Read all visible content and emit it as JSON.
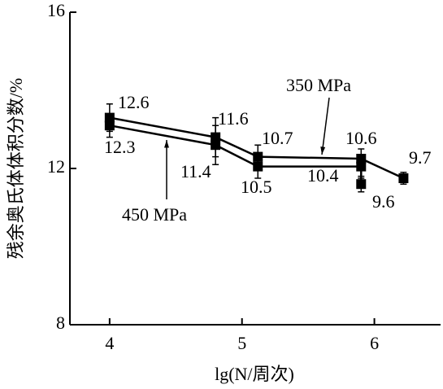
{
  "chart_data": {
    "type": "line",
    "x_label": "lg(N/周次)",
    "y_label": "残余奥氏体体积分数/%",
    "xlim": [
      3.7,
      6.5
    ],
    "xticks": [
      4,
      5,
      6
    ],
    "ylim": [
      8,
      16
    ],
    "yticks": [
      8,
      12,
      16
    ],
    "series": [
      {
        "name": "350 MPa",
        "color": "#000000",
        "marker": "square",
        "x": [
          4,
          4.8,
          5.12,
          5.9,
          6.22
        ],
        "values": [
          13.3,
          12.8,
          12.3,
          12.25,
          11.75
        ],
        "errors": [
          0.35,
          0.5,
          0.3,
          0.25,
          0.15
        ],
        "annotations": [
          "12.6",
          "11.6",
          "10.7",
          "10.6",
          "9.7"
        ]
      },
      {
        "name": "450 MPa",
        "color": "#000000",
        "marker": "square",
        "x": [
          4,
          4.8,
          5.12,
          5.9,
          5.9
        ],
        "values": [
          13.1,
          12.6,
          12.05,
          12.05,
          11.6
        ],
        "errors": [
          0.3,
          0.5,
          0.3,
          0.3,
          0.2
        ],
        "annotations": [
          "12.3",
          "11.4",
          "10.5",
          "10.4",
          "9.6"
        ]
      }
    ]
  }
}
